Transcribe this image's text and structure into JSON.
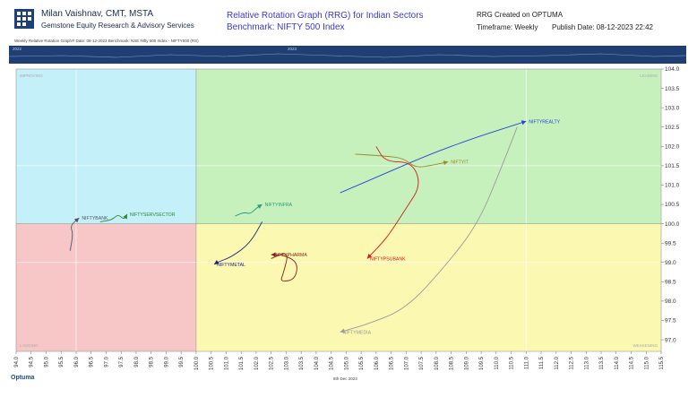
{
  "header": {
    "author": "Milan Vaishnav, CMT, MSTA",
    "company": "Gemstone Equity Research & Advisory Services",
    "title": "Relative Rotation Graph (RRG) for Indian Sectors",
    "benchmark": "Benchmark: NIFTY 500 Index",
    "created": "RRG Created on OPTUMA",
    "timeframe": "Timeframe: Weekly",
    "published": "Publish Date: 08-12-2023 22:42"
  },
  "subline": "Weekly Relative Rotation Graph®     Date: 08-12-2023  Benchmark: NSE Nifty 500 Index - NIFTY500 (RS)",
  "timebar": {
    "left_label": "2022",
    "mid_label": "2023"
  },
  "footer": {
    "brand": "Optuma",
    "date": "8th Dec 2023"
  },
  "colors": {
    "leading": "#c6f1bd",
    "weakening": "#fbf8b2",
    "lagging": "#f7c6c6",
    "improving": "#c4f0f9",
    "timebar": "#1f3f74"
  },
  "chart_data": {
    "type": "scatter",
    "title": "Relative Rotation Graph (RRG) for Indian Sectors",
    "xlim": [
      94.0,
      115.5
    ],
    "ylim": [
      96.7,
      104.0
    ],
    "x_ticks": [
      "94.0",
      "94.5",
      "95.0",
      "95.5",
      "96.0",
      "96.5",
      "97.0",
      "97.5",
      "98.0",
      "98.5",
      "99.0",
      "99.5",
      "100.0",
      "100.5",
      "101.0",
      "101.5",
      "102.0",
      "102.5",
      "103.0",
      "103.5",
      "104.0",
      "104.5",
      "105.0",
      "105.5",
      "106.0",
      "106.5",
      "107.0",
      "107.5",
      "108.0",
      "108.5",
      "109.0",
      "109.5",
      "110.0",
      "110.5",
      "111.0",
      "111.5",
      "112.0",
      "112.5",
      "113.0",
      "113.5",
      "114.0",
      "114.5",
      "115.0",
      "115.5"
    ],
    "y_ticks": [
      "97.0",
      "97.5",
      "98.0",
      "98.5",
      "99.0",
      "99.5",
      "100.0",
      "100.5",
      "101.0",
      "101.5",
      "102.0",
      "102.5",
      "103.0",
      "103.5",
      "104.0"
    ],
    "quadrant_labels": {
      "leading": "LEADING",
      "weakening": "WEAKENING",
      "lagging": "LAGGING",
      "improving": "IMPROVING"
    },
    "series": [
      {
        "name": "NIFTYREALTY",
        "color": "#2a3fe0",
        "points": [
          [
            104.8,
            100.8
          ],
          [
            106.3,
            101.3
          ],
          [
            107.8,
            101.8
          ],
          [
            109.2,
            102.2
          ],
          [
            110.2,
            102.45
          ],
          [
            111.0,
            102.65
          ]
        ]
      },
      {
        "name": "NIFTYIT",
        "color": "#9a8a2a",
        "points": [
          [
            105.3,
            101.8
          ],
          [
            106.3,
            101.75
          ],
          [
            106.9,
            101.7
          ],
          [
            107.3,
            101.45
          ],
          [
            107.8,
            101.5
          ],
          [
            108.4,
            101.6
          ]
        ]
      },
      {
        "name": "NIFTYPSUBANK",
        "color": "#d41c1c",
        "points": [
          [
            106.0,
            102.0
          ],
          [
            106.3,
            101.6
          ],
          [
            107.2,
            101.6
          ],
          [
            107.5,
            101.0
          ],
          [
            107.0,
            100.4
          ],
          [
            106.5,
            99.8
          ],
          [
            106.2,
            99.5
          ],
          [
            105.7,
            99.1
          ]
        ]
      },
      {
        "name": "NIFTYMEDIA",
        "color": "#9a9a9a",
        "points": [
          [
            110.7,
            102.5
          ],
          [
            110.2,
            101.5
          ],
          [
            109.4,
            100.0
          ],
          [
            108.3,
            98.9
          ],
          [
            107.0,
            97.8
          ],
          [
            105.7,
            97.4
          ],
          [
            104.8,
            97.2
          ]
        ]
      },
      {
        "name": "NIFTYINFRA",
        "color": "#2a9a7a",
        "points": [
          [
            101.3,
            100.2
          ],
          [
            101.6,
            100.3
          ],
          [
            101.8,
            100.25
          ],
          [
            102.0,
            100.4
          ],
          [
            102.2,
            100.5
          ]
        ]
      },
      {
        "name": "NIFTYSERVSECTOR",
        "color": "#2a8a2a",
        "points": [
          [
            96.8,
            100.05
          ],
          [
            97.2,
            100.1
          ],
          [
            97.4,
            100.25
          ],
          [
            97.6,
            100.1
          ],
          [
            97.7,
            100.25
          ]
        ]
      },
      {
        "name": "NIFTYBANK",
        "color": "#4a5a6a",
        "points": [
          [
            95.8,
            99.3
          ],
          [
            95.9,
            99.75
          ],
          [
            95.8,
            99.95
          ],
          [
            96.1,
            100.15
          ]
        ]
      },
      {
        "name": "NIFTYMETAL",
        "color": "#1d1f7a",
        "points": [
          [
            102.2,
            100.05
          ],
          [
            101.8,
            99.5
          ],
          [
            101.2,
            99.15
          ],
          [
            100.7,
            99.0
          ],
          [
            100.6,
            98.95
          ]
        ]
      },
      {
        "name": "NIFTYPHARMA",
        "color": "#8a1d1d",
        "points": [
          [
            102.5,
            99.1
          ],
          [
            103.1,
            99.3
          ],
          [
            102.9,
            98.7
          ],
          [
            102.8,
            98.5
          ],
          [
            103.3,
            98.55
          ],
          [
            103.4,
            99.0
          ],
          [
            102.9,
            99.2
          ],
          [
            102.5,
            99.2
          ]
        ]
      }
    ]
  }
}
